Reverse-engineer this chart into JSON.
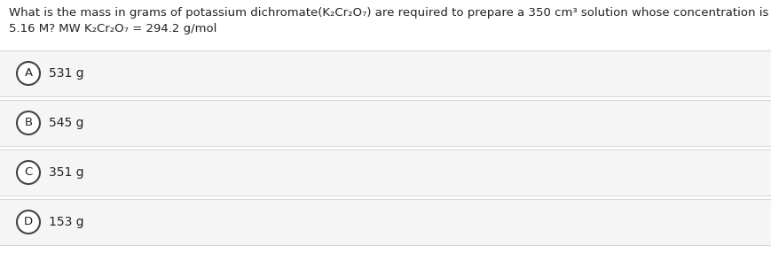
{
  "question_line1": "What is the mass in grams of potassium dichromate(K₂Cr₂O₇) are required to prepare a 350 cm³ solution whose concentration is",
  "question_line2": "5.16 M? MW K₂Cr₂O₇ = 294.2 g/mol",
  "options": [
    {
      "label": "A",
      "text": "531 g"
    },
    {
      "label": "B",
      "text": "545 g"
    },
    {
      "label": "C",
      "text": "351 g"
    },
    {
      "label": "D",
      "text": "153 g"
    }
  ],
  "background_color": "#ffffff",
  "option_box_color": "#f5f5f5",
  "option_box_border": "#d8d8d8",
  "circle_edge_color": "#444444",
  "circle_face_color": "#ffffff",
  "text_color": "#222222",
  "question_fontsize": 9.5,
  "option_fontsize": 10.0,
  "label_fontsize": 9.5,
  "fig_width": 8.7,
  "fig_height": 2.86,
  "dpi": 100
}
